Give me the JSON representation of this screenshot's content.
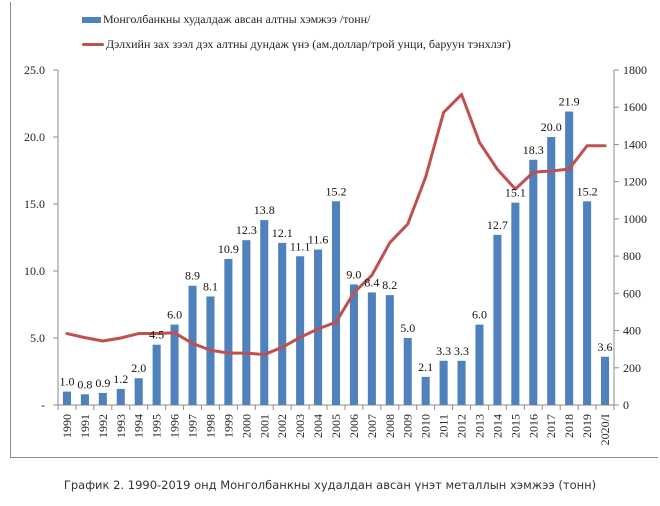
{
  "chart_data": {
    "type": "bar",
    "title": "",
    "caption": "График 2. 1990-2019 онд Монголбанкны худалдан авсан үнэт металлын хэмжээ (тонн)",
    "categories": [
      "1990",
      "1991",
      "1992",
      "1993",
      "1994",
      "1995",
      "1996",
      "1997",
      "1998",
      "1999",
      "2000",
      "2001",
      "2002",
      "2003",
      "2004",
      "2005",
      "2006",
      "2007",
      "2008",
      "2009",
      "2010",
      "2011",
      "2012",
      "2013",
      "2014",
      "2015",
      "2016",
      "2017",
      "2018",
      "2019",
      "2020/I"
    ],
    "series": [
      {
        "name": "Монголбанкны худалдаж  авсан алтны хэмжээ /тонн/",
        "type": "bar",
        "axis": "left",
        "color": "#4f81bd",
        "values": [
          1.0,
          0.8,
          0.9,
          1.2,
          2.0,
          4.5,
          6.0,
          8.9,
          8.1,
          10.9,
          12.3,
          13.8,
          12.1,
          11.1,
          11.6,
          15.2,
          9.0,
          8.4,
          8.2,
          5.0,
          2.1,
          3.3,
          3.3,
          6.0,
          12.7,
          15.1,
          18.3,
          20.0,
          21.9,
          15.2,
          3.6
        ],
        "labels": [
          "1.0",
          "0.8",
          "0.9",
          "1.2",
          "2.0",
          "4.5",
          "6.0",
          "8.9",
          "8.1",
          "10.9",
          "12.3",
          "13.8",
          "12.1",
          "11.1",
          "11.6",
          "15.2",
          "9.0",
          "8.4",
          "8.2",
          "5.0",
          "2.1",
          "3.3",
          "3.3",
          "6.0",
          "12.7",
          "15.1",
          "18.3",
          "20.0",
          "21.9",
          "15.2",
          "3.6"
        ]
      },
      {
        "name": "Дэлхийн  зах  зээл дэх алтны дундаж үнэ (ам.доллар/трой унци, баруун тэнхлэг)",
        "type": "line",
        "axis": "right",
        "color": "#c0504d",
        "values": [
          384,
          362,
          344,
          360,
          384,
          384,
          388,
          331,
          294,
          279,
          279,
          271,
          310,
          363,
          409,
          445,
          604,
          697,
          872,
          972,
          1225,
          1572,
          1669,
          1411,
          1266,
          1160,
          1251,
          1257,
          1268,
          1393,
          1393
        ]
      }
    ],
    "left_axis": {
      "ylim": [
        0,
        25
      ],
      "ticks": [
        "-",
        "5.0",
        "10.0",
        "15.0",
        "20.0",
        "25.0"
      ],
      "tick_values": [
        0,
        5,
        10,
        15,
        20,
        25
      ]
    },
    "right_axis": {
      "ylim": [
        0,
        1800
      ],
      "ticks": [
        "0",
        "200",
        "400",
        "600",
        "800",
        "1000",
        "1200",
        "1400",
        "1600",
        "1800"
      ],
      "tick_values": [
        0,
        200,
        400,
        600,
        800,
        1000,
        1200,
        1400,
        1600,
        1800
      ]
    },
    "xlabel": "",
    "ylabel": "",
    "legend_position": "top-center",
    "grid": false
  }
}
